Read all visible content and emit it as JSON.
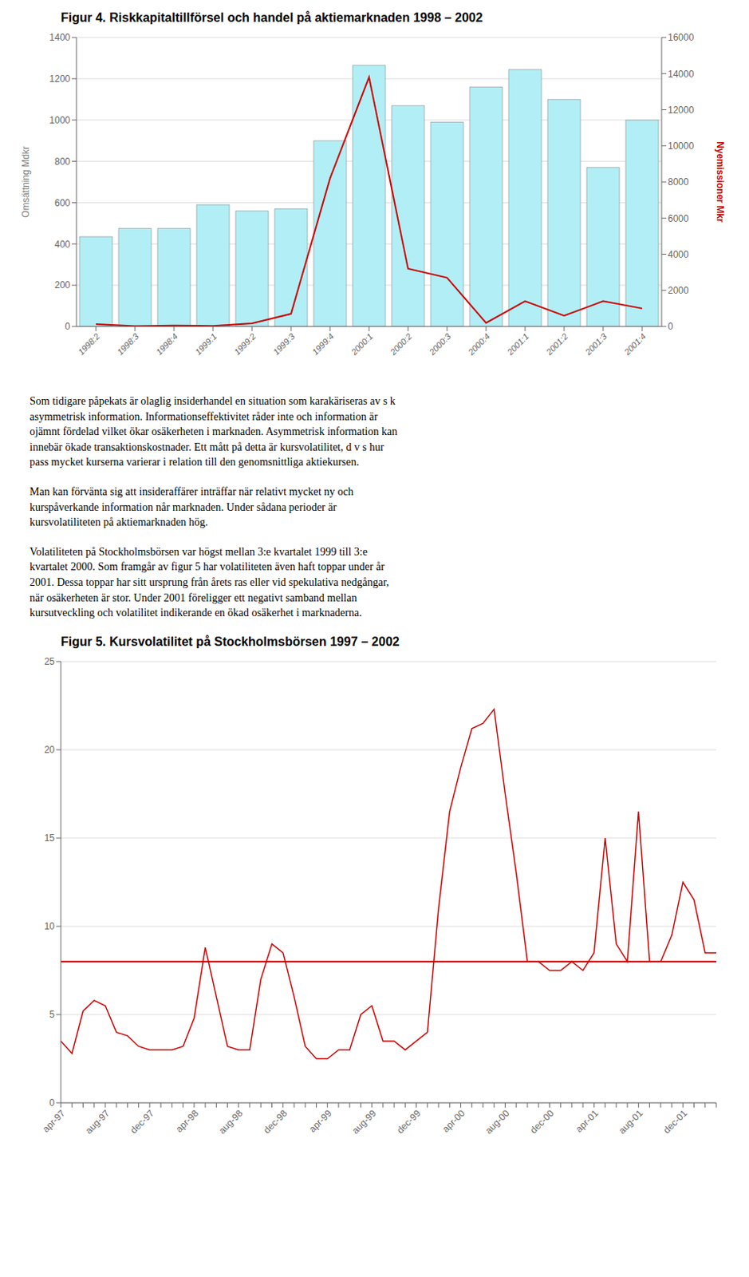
{
  "chart_data": [
    {
      "type": "bar",
      "title": "Figur 4. Riskkapitaltillförsel och handel på aktiemarknaden 1998 – 2002",
      "categories": [
        "1998:2",
        "1998:3",
        "1998:4",
        "1999:1",
        "1999:2",
        "1999:3",
        "1999:4",
        "2000:1",
        "2000:2",
        "2000:3",
        "2000:4",
        "2001:1",
        "2001:2",
        "2001:3",
        "2001:4"
      ],
      "series": [
        {
          "type": "bar",
          "color": "#b2eef5",
          "values": [
            435,
            475,
            475,
            590,
            560,
            570,
            900,
            1265,
            1070,
            990,
            1160,
            1245,
            1100,
            770,
            1000
          ]
        },
        {
          "type": "line",
          "axis": "y2",
          "color": "#cc0000",
          "values": [
            130,
            20,
            55,
            30,
            170,
            700,
            8200,
            13800,
            3200,
            2700,
            200,
            1400,
            600,
            1400,
            1000
          ]
        }
      ],
      "ylabel": "Omsättning Mdkr",
      "y2label": "Nyemissioner Mkr",
      "ylim": [
        0,
        1400
      ],
      "yticks": [
        0,
        200,
        400,
        600,
        800,
        1000,
        1200,
        1400
      ],
      "y2lim": [
        0,
        16000
      ],
      "y2ticks": [
        0,
        2000,
        4000,
        6000,
        8000,
        10000,
        12000,
        14000,
        16000
      ],
      "grid": true,
      "annotations": [
        "Som tidigare påpekats är olaglig insiderhandel en situation som karakäriseras av s k\nasymmetrisk information. Informationseffektivitet råder inte och information är\nojämnt fördelad vilket ökar osäkerheten i marknaden. Asymmetrisk information kan\ninnebär ökade transaktionskostnader. Ett mått på detta är kursvolatilitet, d v s hur\npass mycket kurserna varierar i relation till den genomsnittliga aktiekursen.",
        "Man kan förvänta sig att insideraffärer inträffar när relativt mycket ny och\nkurspåverkande information når marknaden. Under sådana perioder är\nkursvolatiliteten på aktiemarknaden hög.",
        "Volatiliteten på Stockholmsbörsen var högst mellan 3:e kvartalet 1999 till 3:e\nkvartalet 2000. Som framgår av figur 5 har volatiliteten även haft toppar under år\n2001. Dessa toppar har sitt ursprung från årets ras eller vid spekulativa nedgångar,\nnär osäkerheten är stor. Under 2001 föreligger ett negativt samband mellan\nkursutveckling och volatilitet indikerande en ökad osäkerhet i marknaderna."
      ]
    },
    {
      "type": "line",
      "title": "Figur 5. Kursvolatilitet på Stockholmsbörsen 1997 – 2002",
      "categories": [
        "apr-97",
        null,
        null,
        null,
        "aug-97",
        null,
        null,
        null,
        "dec-97",
        null,
        null,
        null,
        "apr-98",
        null,
        null,
        null,
        "aug-98",
        null,
        null,
        null,
        "dec-98",
        null,
        null,
        null,
        "apr-99",
        null,
        null,
        null,
        "aug-99",
        null,
        null,
        null,
        "dec-99",
        null,
        null,
        null,
        "apr-00",
        null,
        null,
        null,
        "aug-00",
        null,
        null,
        null,
        "dec-00",
        null,
        null,
        null,
        "apr-01",
        null,
        null,
        null,
        "aug-01",
        null,
        null,
        null,
        "dec-01",
        null,
        null,
        null
      ],
      "values": [
        3.5,
        2.8,
        5.2,
        5.8,
        5.5,
        4.0,
        3.8,
        3.2,
        3.0,
        3.0,
        3.0,
        3.2,
        4.8,
        8.8,
        6.0,
        3.2,
        3.0,
        3.0,
        7.0,
        9.0,
        8.5,
        6.0,
        3.2,
        2.5,
        2.5,
        3.0,
        3.0,
        5.0,
        5.5,
        3.5,
        3.5,
        3.0,
        3.5,
        4.0,
        11.0,
        16.5,
        19.0,
        21.2,
        21.5,
        22.3,
        17.5,
        13.0,
        8.0,
        8.0,
        7.5,
        7.5,
        8.0,
        7.5,
        8.5,
        15.0,
        9.0,
        8.0,
        16.5,
        8.0,
        8.0,
        9.5,
        12.5,
        11.5,
        8.5,
        8.5
      ],
      "color": "#cc0000",
      "reference_line": {
        "value": 8.0,
        "color": "#cc0000"
      },
      "ylim": [
        0,
        25
      ],
      "yticks": [
        0,
        5,
        10,
        15,
        20,
        25
      ],
      "grid": true
    }
  ]
}
